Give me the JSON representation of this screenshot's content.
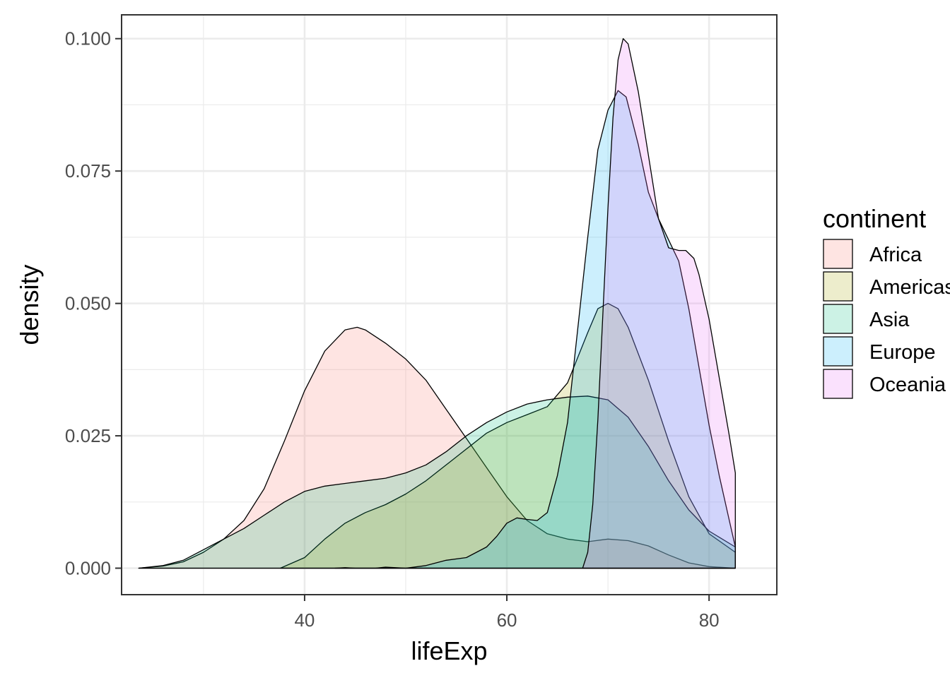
{
  "chart_data": {
    "type": "area",
    "subtype": "density",
    "xlabel": "lifeExp",
    "ylabel": "density",
    "xlim": [
      21.9,
      86.7
    ],
    "ylim": [
      -0.005,
      0.1045
    ],
    "x_ticks": [
      40,
      60,
      80
    ],
    "x_tick_labels": [
      "40",
      "60",
      "80"
    ],
    "x_minor_grid": [
      30,
      50,
      70
    ],
    "y_ticks": [
      0,
      0.025,
      0.05,
      0.075,
      0.1
    ],
    "y_tick_labels": [
      "0.000",
      "0.025",
      "0.050",
      "0.075",
      "0.100"
    ],
    "y_minor_grid": [
      0.0125,
      0.0375,
      0.0625,
      0.0875
    ],
    "grid": true,
    "legend": {
      "title": "continent",
      "position": "right"
    },
    "fill_opacity": 0.2,
    "series": [
      {
        "name": "Africa",
        "color": "#F8766D",
        "points": [
          [
            23.6,
            0.0
          ],
          [
            26,
            0.0004
          ],
          [
            28,
            0.0012
          ],
          [
            30,
            0.003
          ],
          [
            32,
            0.0055
          ],
          [
            34,
            0.009
          ],
          [
            36,
            0.015
          ],
          [
            38,
            0.024
          ],
          [
            40,
            0.0335
          ],
          [
            42,
            0.041
          ],
          [
            44,
            0.045
          ],
          [
            45.2,
            0.0455
          ],
          [
            46,
            0.045
          ],
          [
            48,
            0.0425
          ],
          [
            50,
            0.0395
          ],
          [
            52,
            0.0355
          ],
          [
            54,
            0.03
          ],
          [
            56,
            0.0245
          ],
          [
            58,
            0.019
          ],
          [
            60,
            0.0135
          ],
          [
            62,
            0.009
          ],
          [
            64,
            0.0065
          ],
          [
            66,
            0.0055
          ],
          [
            68,
            0.005
          ],
          [
            70,
            0.0055
          ],
          [
            72,
            0.0052
          ],
          [
            74,
            0.0042
          ],
          [
            76,
            0.0025
          ],
          [
            78,
            0.001
          ],
          [
            80,
            0.0003
          ],
          [
            82.6,
            0.0
          ]
        ]
      },
      {
        "name": "Americas",
        "color": "#A3A500",
        "points": [
          [
            37.6,
            0.0
          ],
          [
            40,
            0.002
          ],
          [
            42,
            0.0055
          ],
          [
            44,
            0.0085
          ],
          [
            46,
            0.0105
          ],
          [
            48,
            0.012
          ],
          [
            50,
            0.014
          ],
          [
            52,
            0.0165
          ],
          [
            54,
            0.0195
          ],
          [
            56,
            0.0225
          ],
          [
            58,
            0.0255
          ],
          [
            60,
            0.0275
          ],
          [
            62,
            0.029
          ],
          [
            64,
            0.0305
          ],
          [
            66,
            0.035
          ],
          [
            68,
            0.0445
          ],
          [
            69,
            0.049
          ],
          [
            70,
            0.05
          ],
          [
            71,
            0.049
          ],
          [
            72,
            0.0455
          ],
          [
            74,
            0.0355
          ],
          [
            76,
            0.024
          ],
          [
            78,
            0.0135
          ],
          [
            80,
            0.0065
          ],
          [
            82.6,
            0.003
          ]
        ]
      },
      {
        "name": "Asia",
        "color": "#00BF7D",
        "points": [
          [
            23.6,
            0.0
          ],
          [
            26,
            0.0005
          ],
          [
            28,
            0.0015
          ],
          [
            30,
            0.0035
          ],
          [
            32,
            0.0055
          ],
          [
            34,
            0.0075
          ],
          [
            36,
            0.01
          ],
          [
            38,
            0.0125
          ],
          [
            40,
            0.0145
          ],
          [
            42,
            0.0155
          ],
          [
            44,
            0.016
          ],
          [
            46,
            0.0165
          ],
          [
            48,
            0.017
          ],
          [
            50,
            0.018
          ],
          [
            52,
            0.0195
          ],
          [
            54,
            0.022
          ],
          [
            56,
            0.025
          ],
          [
            58,
            0.0275
          ],
          [
            60,
            0.0295
          ],
          [
            62,
            0.031
          ],
          [
            64,
            0.0318
          ],
          [
            66,
            0.0323
          ],
          [
            68,
            0.0325
          ],
          [
            70,
            0.0318
          ],
          [
            72,
            0.0285
          ],
          [
            74,
            0.023
          ],
          [
            76,
            0.0165
          ],
          [
            78,
            0.011
          ],
          [
            80,
            0.007
          ],
          [
            82.6,
            0.004
          ]
        ]
      },
      {
        "name": "Europe",
        "color": "#00B0F6",
        "points": [
          [
            43,
            0.0
          ],
          [
            44,
            0.0001
          ],
          [
            45,
            0.0
          ],
          [
            47,
            0.0
          ],
          [
            48,
            0.0002
          ],
          [
            50,
            0.0
          ],
          [
            52,
            0.0005
          ],
          [
            54,
            0.0015
          ],
          [
            56,
            0.002
          ],
          [
            58,
            0.004
          ],
          [
            59,
            0.006
          ],
          [
            60,
            0.0085
          ],
          [
            61,
            0.0095
          ],
          [
            62,
            0.0092
          ],
          [
            63,
            0.009
          ],
          [
            64,
            0.0105
          ],
          [
            65,
            0.0175
          ],
          [
            66,
            0.0275
          ],
          [
            67,
            0.045
          ],
          [
            68,
            0.0625
          ],
          [
            69,
            0.079
          ],
          [
            70,
            0.0865
          ],
          [
            71,
            0.0902
          ],
          [
            71.8,
            0.089
          ],
          [
            73,
            0.08
          ],
          [
            74,
            0.071
          ],
          [
            75,
            0.066
          ],
          [
            76,
            0.062
          ],
          [
            77,
            0.058
          ],
          [
            78,
            0.049
          ],
          [
            79,
            0.038
          ],
          [
            80,
            0.027
          ],
          [
            81,
            0.0175
          ],
          [
            82,
            0.009
          ],
          [
            82.6,
            0.004
          ]
        ]
      },
      {
        "name": "Oceania",
        "color": "#E76BF3",
        "points": [
          [
            67.5,
            0.0
          ],
          [
            68,
            0.003
          ],
          [
            68.5,
            0.012
          ],
          [
            69,
            0.028
          ],
          [
            69.5,
            0.048
          ],
          [
            70,
            0.068
          ],
          [
            70.5,
            0.085
          ],
          [
            71,
            0.096
          ],
          [
            71.5,
            0.1
          ],
          [
            72,
            0.099
          ],
          [
            73,
            0.09
          ],
          [
            74,
            0.078
          ],
          [
            75,
            0.066
          ],
          [
            76,
            0.0605
          ],
          [
            77,
            0.06
          ],
          [
            77.7,
            0.06
          ],
          [
            78.5,
            0.0585
          ],
          [
            79,
            0.0555
          ],
          [
            80,
            0.047
          ],
          [
            81,
            0.036
          ],
          [
            82,
            0.025
          ],
          [
            82.6,
            0.018
          ]
        ]
      }
    ]
  }
}
